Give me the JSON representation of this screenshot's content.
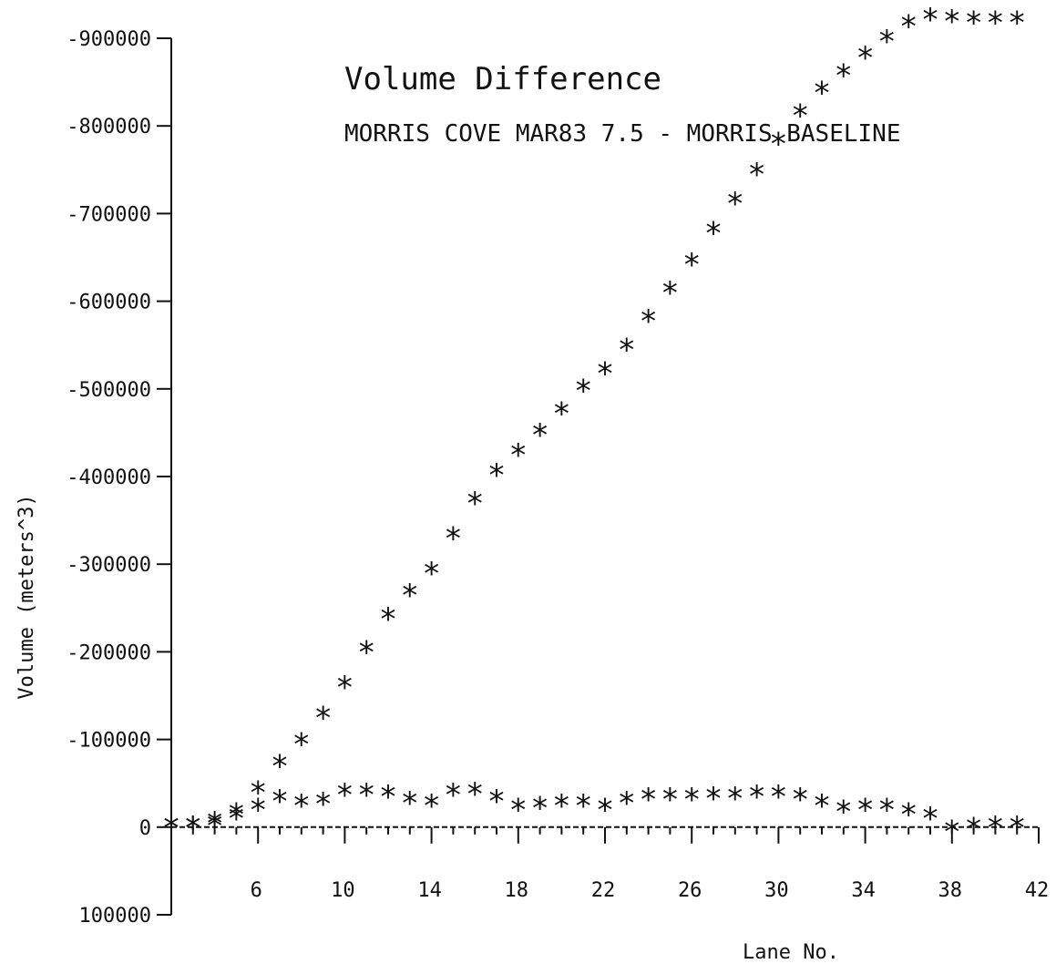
{
  "chart_data": {
    "type": "scatter",
    "title": "Volume Difference",
    "subtitle": "MORRIS COVE MAR83 7.5 - MORRIS BASELINE",
    "xlabel": "Lane No.",
    "ylabel": "Volume (meters^3)",
    "xlim": [
      2,
      42
    ],
    "ylim": [
      100000,
      -900000
    ],
    "x_ticks": [
      6,
      10,
      14,
      18,
      22,
      26,
      30,
      34,
      38,
      42
    ],
    "x_tick_labels": [
      "6",
      "10",
      "14",
      "18",
      "22",
      "26",
      "30",
      "34",
      "38",
      "42"
    ],
    "y_ticks": [
      -900000,
      -800000,
      -700000,
      -600000,
      -500000,
      -400000,
      -300000,
      -200000,
      -100000,
      0,
      100000
    ],
    "y_tick_labels": [
      "-900000",
      "-800000",
      "-700000",
      "-600000",
      "-500000",
      "-400000",
      "-300000",
      "-200000",
      "-100000",
      "0",
      "100000"
    ],
    "grid": false,
    "marker": "*",
    "series": [
      {
        "x": [
          2,
          3,
          4,
          5,
          6,
          7,
          8,
          9,
          10,
          11,
          12,
          13,
          14,
          15,
          16,
          17,
          18,
          19,
          20,
          21,
          22,
          23,
          24,
          25,
          26,
          27,
          28,
          29,
          30,
          31,
          32,
          33,
          34,
          35,
          36,
          37,
          38,
          39,
          40,
          41
        ],
        "values": [
          0,
          0,
          -5000,
          -15000,
          -40000,
          -70000,
          -95000,
          -125000,
          -160000,
          -200000,
          -238000,
          -265000,
          -290000,
          -330000,
          -370000,
          -402000,
          -425000,
          -448000,
          -472000,
          -498000,
          -518000,
          -545000,
          -578000,
          -610000,
          -642000,
          -678000,
          -712000,
          -745000,
          -780000,
          -812000,
          -838000,
          -858000,
          -878000,
          -897000,
          -914000,
          -922000,
          -920000,
          -918000,
          -918000,
          -918000
        ]
      },
      {
        "x": [
          2,
          3,
          4,
          5,
          6,
          7,
          8,
          9,
          10,
          11,
          12,
          13,
          14,
          15,
          16,
          17,
          18,
          19,
          20,
          21,
          22,
          23,
          24,
          25,
          26,
          27,
          28,
          29,
          30,
          31,
          32,
          33,
          34,
          35,
          36,
          37,
          38,
          39,
          40,
          41
        ],
        "values": [
          0,
          0,
          -2000,
          -10000,
          -20000,
          -30000,
          -25000,
          -27000,
          -37000,
          -37000,
          -35000,
          -28000,
          -25000,
          -37000,
          -38000,
          -30000,
          -20000,
          -22000,
          -25000,
          -25000,
          -20000,
          -28000,
          -32000,
          -32000,
          -32000,
          -33000,
          -33000,
          -35000,
          -35000,
          -32000,
          -25000,
          -18000,
          -20000,
          -20000,
          -15000,
          -10000,
          5000,
          2000,
          0,
          0
        ]
      }
    ]
  }
}
